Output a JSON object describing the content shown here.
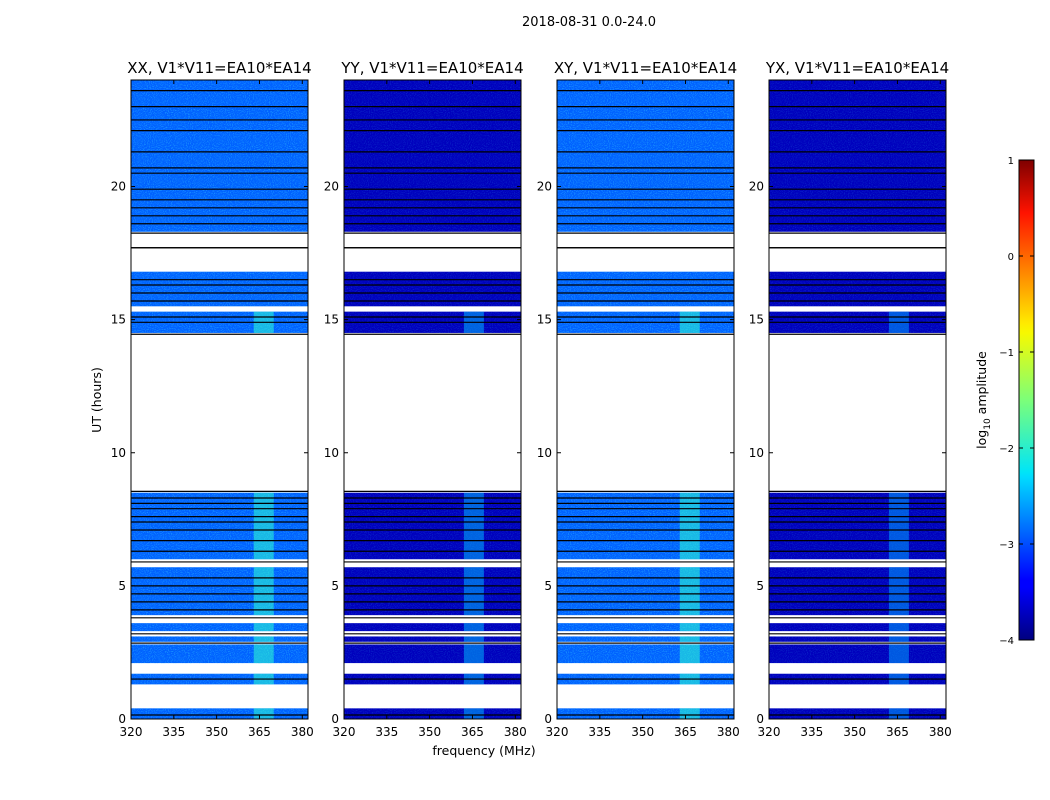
{
  "suptitle": "2018-08-31 0.0-24.0",
  "chart_data": {
    "type": "heatmap",
    "suptitle": "2018-08-31 0.0-24.0",
    "xlabel": "frequency (MHz)",
    "ylabel": "UT (hours)",
    "xlim": [
      320,
      382
    ],
    "ylim": [
      0,
      24
    ],
    "xticks": [
      320,
      335,
      350,
      365,
      380
    ],
    "yticks": [
      0,
      5,
      10,
      15,
      20
    ],
    "colorbar": {
      "label": "log10 amplitude",
      "label_main": "log",
      "label_sub": "10",
      "label_rest": " amplitude",
      "range": [
        -4,
        1
      ],
      "ticks": [
        1,
        0,
        -1,
        -2,
        -3,
        -4
      ],
      "tick_labels": [
        "1",
        "0",
        "−1",
        "−2",
        "−3",
        "−4"
      ],
      "colormap": "jet"
    },
    "panels": [
      {
        "title": "XX, V1*V11=EA10*EA14",
        "base_level": -2.9,
        "rfi_band_mhz": [
          363,
          370
        ],
        "rfi_level": -1.9
      },
      {
        "title": "YY, V1*V11=EA10*EA14",
        "base_level": -3.7,
        "rfi_band_mhz": [
          362,
          369
        ],
        "rfi_level": -2.5
      },
      {
        "title": "XY, V1*V11=EA10*EA14",
        "base_level": -2.9,
        "rfi_band_mhz": [
          363,
          370
        ],
        "rfi_level": -1.9
      },
      {
        "title": "YX, V1*V11=EA10*EA14",
        "base_level": -3.7,
        "rfi_band_mhz": [
          362,
          369
        ],
        "rfi_level": -2.6
      }
    ],
    "data_segments_ut_hours": [
      [
        0.0,
        0.4
      ],
      [
        1.3,
        1.7
      ],
      [
        2.1,
        2.8
      ],
      [
        2.9,
        3.1
      ],
      [
        3.3,
        3.6
      ],
      [
        3.9,
        5.7
      ],
      [
        6.0,
        8.5
      ],
      [
        14.5,
        15.3
      ],
      [
        15.5,
        16.8
      ],
      [
        18.3,
        24.0
      ]
    ],
    "flagged_lines_ut_hours": [
      0.15,
      1.5,
      2.85,
      3.2,
      3.8,
      4.1,
      4.4,
      4.7,
      5.0,
      5.3,
      5.9,
      6.3,
      6.7,
      7.1,
      7.4,
      7.6,
      7.9,
      8.1,
      8.3,
      14.9,
      15.1,
      15.7,
      16.0,
      16.3,
      16.5,
      17.7,
      18.6,
      18.9,
      19.2,
      19.5,
      19.9,
      20.5,
      20.7,
      21.3,
      22.1,
      22.5,
      23.0,
      23.6
    ]
  }
}
